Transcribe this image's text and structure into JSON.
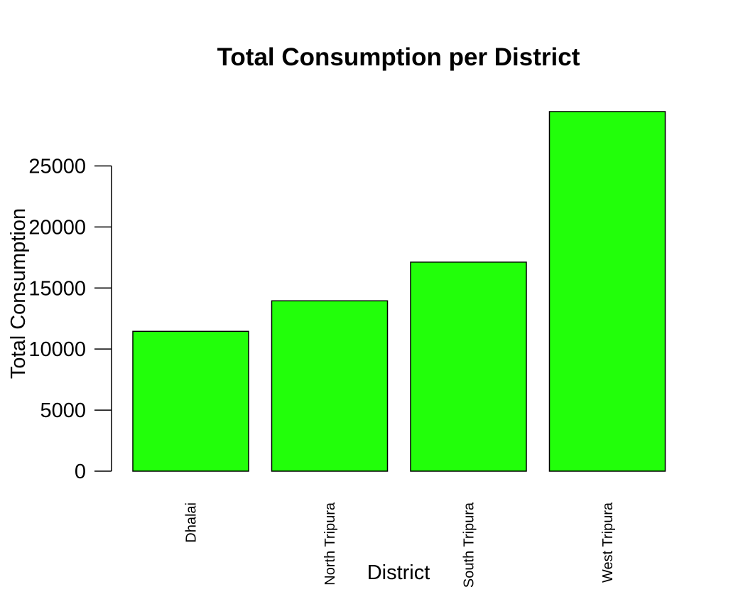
{
  "chart_data": {
    "type": "bar",
    "title": "Total Consumption per District",
    "xlabel": "District",
    "ylabel": "Total Consumption",
    "categories": [
      "Dhalai",
      "North Tripura",
      "South Tripura",
      "West Tripura"
    ],
    "values": [
      11450,
      13950,
      17120,
      29450
    ],
    "yticks": [
      0,
      5000,
      10000,
      15000,
      20000,
      25000
    ],
    "ytick_labels": [
      "0",
      "5000",
      "10000",
      "15000",
      "20000",
      "25000"
    ],
    "ylim": [
      0,
      29450
    ],
    "bar_color": "#22ff0a",
    "bar_edge_color": "#000000",
    "grid": false,
    "legend": "none",
    "xtick_rotation": "vertical"
  }
}
